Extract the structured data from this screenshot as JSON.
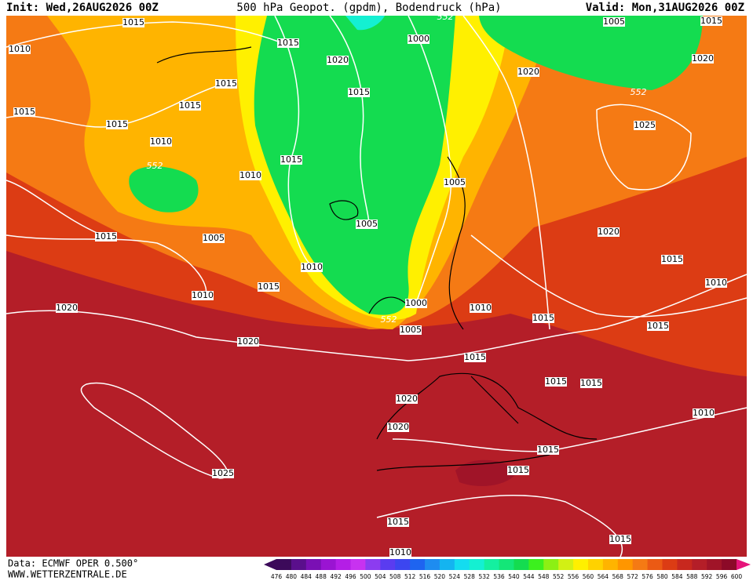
{
  "header": {
    "init": "Init: Wed,26AUG2026 00Z",
    "title": "500 hPa Geopot. (gpdm), Bodendruck (hPa)",
    "valid": "Valid: Mon,31AUG2026 00Z"
  },
  "isobar_labels": [
    "1015",
    "1010",
    "1015",
    "1000",
    "552",
    "1005",
    "1015",
    "1020",
    "1015",
    "1015",
    "1015",
    "1020",
    "552",
    "1020",
    "1015",
    "1015",
    "1025",
    "1010",
    "552",
    "1015",
    "1010",
    "1005",
    "1005",
    "1015",
    "1005",
    "1020",
    "1015",
    "1010",
    "1015",
    "1010",
    "1000",
    "1010",
    "1020",
    "1015",
    "552",
    "1005",
    "1015",
    "1010",
    "1020",
    "1015",
    "1015",
    "1015",
    "1020",
    "1010",
    "1020",
    "1015",
    "1015",
    "1025",
    "1015",
    "1015",
    "1010"
  ],
  "colorbar": {
    "labels": [
      476,
      480,
      484,
      488,
      492,
      496,
      500,
      504,
      508,
      512,
      516,
      520,
      524,
      528,
      532,
      536,
      540,
      544,
      548,
      552,
      556,
      560,
      564,
      568,
      572,
      576,
      580,
      584,
      588,
      592,
      596,
      600
    ]
  },
  "footer": {
    "source": "Data: ECMWF OPER 0.500°",
    "site": "WWW.WETTERZENTRALE.DE"
  }
}
